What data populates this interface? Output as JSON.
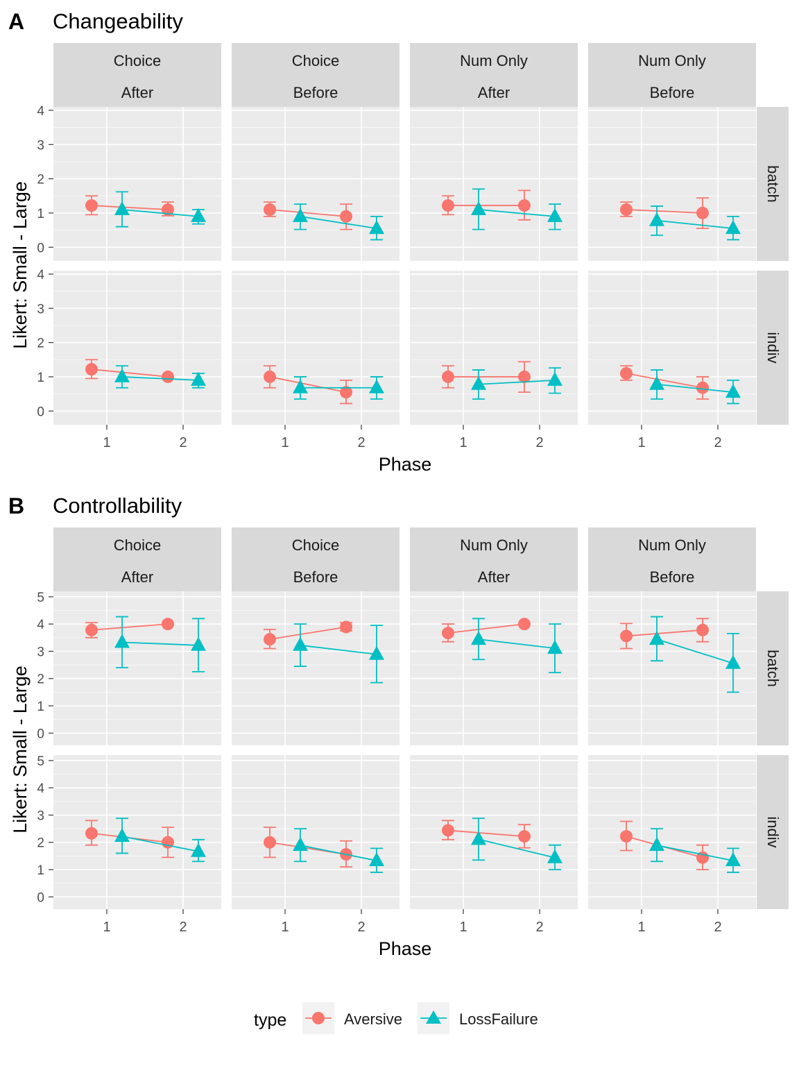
{
  "chart_data": [
    {
      "type": "line",
      "panel_letter": "A",
      "title": "Changeability",
      "xlabel": "Phase",
      "ylabel": "Likert: Small - Large",
      "ylim": [
        -0.4,
        4.1
      ],
      "yticks": [
        "0",
        "1",
        "2",
        "3",
        "4"
      ],
      "xticks": [
        "1",
        "2"
      ],
      "columns": [
        {
          "line1": "Choice",
          "line2": "After"
        },
        {
          "line1": "Choice",
          "line2": "Before"
        },
        {
          "line1": "Num Only",
          "line2": "After"
        },
        {
          "line1": "Num Only",
          "line2": "Before"
        }
      ],
      "rows": [
        "batch",
        "indiv"
      ],
      "series_names": [
        "Aversive",
        "LossFailure"
      ],
      "panels": [
        {
          "row": 0,
          "col": 0,
          "Aversive": [
            {
              "x": 1,
              "y": 1.22,
              "lo": 0.95,
              "hi": 1.5
            },
            {
              "x": 2,
              "y": 1.1,
              "lo": 0.92,
              "hi": 1.32
            }
          ],
          "LossFailure": [
            {
              "x": 1,
              "y": 1.1,
              "lo": 0.6,
              "hi": 1.62
            },
            {
              "x": 2,
              "y": 0.9,
              "lo": 0.68,
              "hi": 1.1
            }
          ]
        },
        {
          "row": 0,
          "col": 1,
          "Aversive": [
            {
              "x": 1,
              "y": 1.1,
              "lo": 0.9,
              "hi": 1.32
            },
            {
              "x": 2,
              "y": 0.9,
              "lo": 0.52,
              "hi": 1.26
            }
          ],
          "LossFailure": [
            {
              "x": 1,
              "y": 0.9,
              "lo": 0.52,
              "hi": 1.26
            },
            {
              "x": 2,
              "y": 0.55,
              "lo": 0.22,
              "hi": 0.9
            }
          ]
        },
        {
          "row": 0,
          "col": 2,
          "Aversive": [
            {
              "x": 1,
              "y": 1.22,
              "lo": 0.95,
              "hi": 1.5
            },
            {
              "x": 2,
              "y": 1.22,
              "lo": 0.8,
              "hi": 1.66
            }
          ],
          "LossFailure": [
            {
              "x": 1,
              "y": 1.1,
              "lo": 0.52,
              "hi": 1.7
            },
            {
              "x": 2,
              "y": 0.9,
              "lo": 0.52,
              "hi": 1.26
            }
          ]
        },
        {
          "row": 0,
          "col": 3,
          "Aversive": [
            {
              "x": 1,
              "y": 1.1,
              "lo": 0.9,
              "hi": 1.32
            },
            {
              "x": 2,
              "y": 1.0,
              "lo": 0.55,
              "hi": 1.44
            }
          ],
          "LossFailure": [
            {
              "x": 1,
              "y": 0.78,
              "lo": 0.35,
              "hi": 1.2
            },
            {
              "x": 2,
              "y": 0.55,
              "lo": 0.22,
              "hi": 0.9
            }
          ]
        },
        {
          "row": 1,
          "col": 0,
          "Aversive": [
            {
              "x": 1,
              "y": 1.22,
              "lo": 0.95,
              "hi": 1.5
            },
            {
              "x": 2,
              "y": 1.0,
              "lo": 1.0,
              "hi": 1.0
            }
          ],
          "LossFailure": [
            {
              "x": 1,
              "y": 1.0,
              "lo": 0.68,
              "hi": 1.32
            },
            {
              "x": 2,
              "y": 0.9,
              "lo": 0.68,
              "hi": 1.1
            }
          ]
        },
        {
          "row": 1,
          "col": 1,
          "Aversive": [
            {
              "x": 1,
              "y": 1.0,
              "lo": 0.68,
              "hi": 1.32
            },
            {
              "x": 2,
              "y": 0.55,
              "lo": 0.22,
              "hi": 0.9
            }
          ],
          "LossFailure": [
            {
              "x": 1,
              "y": 0.68,
              "lo": 0.35,
              "hi": 1.0
            },
            {
              "x": 2,
              "y": 0.68,
              "lo": 0.35,
              "hi": 1.0
            }
          ]
        },
        {
          "row": 1,
          "col": 2,
          "Aversive": [
            {
              "x": 1,
              "y": 1.0,
              "lo": 0.68,
              "hi": 1.32
            },
            {
              "x": 2,
              "y": 1.0,
              "lo": 0.55,
              "hi": 1.44
            }
          ],
          "LossFailure": [
            {
              "x": 1,
              "y": 0.78,
              "lo": 0.35,
              "hi": 1.2
            },
            {
              "x": 2,
              "y": 0.9,
              "lo": 0.52,
              "hi": 1.26
            }
          ]
        },
        {
          "row": 1,
          "col": 3,
          "Aversive": [
            {
              "x": 1,
              "y": 1.1,
              "lo": 0.9,
              "hi": 1.32
            },
            {
              "x": 2,
              "y": 0.68,
              "lo": 0.35,
              "hi": 1.0
            }
          ],
          "LossFailure": [
            {
              "x": 1,
              "y": 0.78,
              "lo": 0.35,
              "hi": 1.2
            },
            {
              "x": 2,
              "y": 0.55,
              "lo": 0.22,
              "hi": 0.9
            }
          ]
        }
      ]
    },
    {
      "type": "line",
      "panel_letter": "B",
      "title": "Controllability",
      "xlabel": "Phase",
      "ylabel": "Likert: Small - Large",
      "ylim": [
        -0.45,
        5.2
      ],
      "yticks": [
        "0",
        "1",
        "2",
        "3",
        "4",
        "5"
      ],
      "xticks": [
        "1",
        "2"
      ],
      "columns": [
        {
          "line1": "Choice",
          "line2": "After"
        },
        {
          "line1": "Choice",
          "line2": "Before"
        },
        {
          "line1": "Num Only",
          "line2": "After"
        },
        {
          "line1": "Num Only",
          "line2": "Before"
        }
      ],
      "rows": [
        "batch",
        "indiv"
      ],
      "series_names": [
        "Aversive",
        "LossFailure"
      ],
      "panels": [
        {
          "row": 0,
          "col": 0,
          "Aversive": [
            {
              "x": 1,
              "y": 3.78,
              "lo": 3.5,
              "hi": 4.05
            },
            {
              "x": 2,
              "y": 4.0,
              "lo": 4.0,
              "hi": 4.0
            }
          ],
          "LossFailure": [
            {
              "x": 1,
              "y": 3.33,
              "lo": 2.4,
              "hi": 4.27
            },
            {
              "x": 2,
              "y": 3.22,
              "lo": 2.25,
              "hi": 4.2
            }
          ]
        },
        {
          "row": 0,
          "col": 1,
          "Aversive": [
            {
              "x": 1,
              "y": 3.44,
              "lo": 3.1,
              "hi": 3.8
            },
            {
              "x": 2,
              "y": 3.89,
              "lo": 3.75,
              "hi": 4.05
            }
          ],
          "LossFailure": [
            {
              "x": 1,
              "y": 3.22,
              "lo": 2.45,
              "hi": 4.0
            },
            {
              "x": 2,
              "y": 2.89,
              "lo": 1.85,
              "hi": 3.95
            }
          ]
        },
        {
          "row": 0,
          "col": 2,
          "Aversive": [
            {
              "x": 1,
              "y": 3.67,
              "lo": 3.35,
              "hi": 4.0
            },
            {
              "x": 2,
              "y": 4.0,
              "lo": 4.0,
              "hi": 4.0
            }
          ],
          "LossFailure": [
            {
              "x": 1,
              "y": 3.44,
              "lo": 2.7,
              "hi": 4.2
            },
            {
              "x": 2,
              "y": 3.11,
              "lo": 2.22,
              "hi": 4.0
            }
          ]
        },
        {
          "row": 0,
          "col": 3,
          "Aversive": [
            {
              "x": 1,
              "y": 3.56,
              "lo": 3.1,
              "hi": 4.02
            },
            {
              "x": 2,
              "y": 3.78,
              "lo": 3.35,
              "hi": 4.2
            }
          ],
          "LossFailure": [
            {
              "x": 1,
              "y": 3.44,
              "lo": 2.65,
              "hi": 4.27
            },
            {
              "x": 2,
              "y": 2.56,
              "lo": 1.5,
              "hi": 3.65
            }
          ]
        },
        {
          "row": 1,
          "col": 0,
          "Aversive": [
            {
              "x": 1,
              "y": 2.33,
              "lo": 1.9,
              "hi": 2.8
            },
            {
              "x": 2,
              "y": 2.0,
              "lo": 1.45,
              "hi": 2.55
            }
          ],
          "LossFailure": [
            {
              "x": 1,
              "y": 2.22,
              "lo": 1.6,
              "hi": 2.88
            },
            {
              "x": 2,
              "y": 1.67,
              "lo": 1.3,
              "hi": 2.1
            }
          ]
        },
        {
          "row": 1,
          "col": 1,
          "Aversive": [
            {
              "x": 1,
              "y": 2.0,
              "lo": 1.45,
              "hi": 2.55
            },
            {
              "x": 2,
              "y": 1.56,
              "lo": 1.1,
              "hi": 2.05
            }
          ],
          "LossFailure": [
            {
              "x": 1,
              "y": 1.89,
              "lo": 1.3,
              "hi": 2.5
            },
            {
              "x": 2,
              "y": 1.33,
              "lo": 0.9,
              "hi": 1.78
            }
          ]
        },
        {
          "row": 1,
          "col": 2,
          "Aversive": [
            {
              "x": 1,
              "y": 2.44,
              "lo": 2.1,
              "hi": 2.8
            },
            {
              "x": 2,
              "y": 2.22,
              "lo": 1.8,
              "hi": 2.65
            }
          ],
          "LossFailure": [
            {
              "x": 1,
              "y": 2.11,
              "lo": 1.35,
              "hi": 2.88
            },
            {
              "x": 2,
              "y": 1.44,
              "lo": 1.0,
              "hi": 1.9
            }
          ]
        },
        {
          "row": 1,
          "col": 3,
          "Aversive": [
            {
              "x": 1,
              "y": 2.22,
              "lo": 1.7,
              "hi": 2.77
            },
            {
              "x": 2,
              "y": 1.44,
              "lo": 1.0,
              "hi": 1.9
            }
          ],
          "LossFailure": [
            {
              "x": 1,
              "y": 1.89,
              "lo": 1.3,
              "hi": 2.5
            },
            {
              "x": 2,
              "y": 1.33,
              "lo": 0.9,
              "hi": 1.78
            }
          ]
        }
      ]
    }
  ],
  "legend": {
    "title": "type",
    "items": [
      {
        "label": "Aversive",
        "color": "#F8766D",
        "shape": "circle"
      },
      {
        "label": "LossFailure",
        "color": "#00BFC4",
        "shape": "triangle"
      }
    ]
  },
  "colors": {
    "Aversive": "#F8766D",
    "LossFailure": "#00BFC4",
    "panel_bg": "#EBEBEB",
    "strip_bg": "#D9D9D9"
  }
}
